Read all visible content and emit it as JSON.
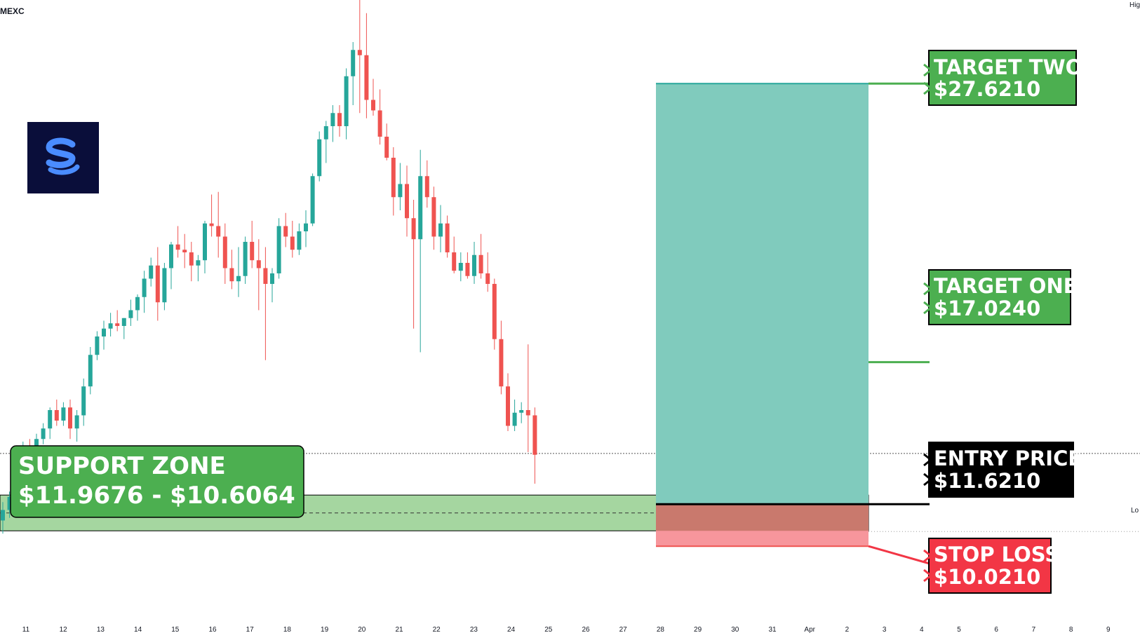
{
  "header": {
    "exchange": "MEXC"
  },
  "corner_labels": {
    "top_right": "Hig",
    "right_edge": "Lo"
  },
  "colors": {
    "up": "#26a69a",
    "down": "#ef5350",
    "target_zone": "#80cbbd",
    "stop_zone": "#f7969c",
    "support_zone": "#a5d6a0",
    "label_green": "#4caf50",
    "label_black": "#000000",
    "label_red": "#f23645",
    "logo_bg": "#0a0e3a",
    "logo_glyph": "#4a8cff"
  },
  "annotations": {
    "support_zone": {
      "title": "SUPPORT ZONE",
      "range": "$11.9676 - $10.6064",
      "top": 11.9676,
      "bottom": 10.6064
    },
    "target_two": {
      "title": "TARGET TWO",
      "price_text": "$27.6210",
      "price": 27.621
    },
    "target_one": {
      "title": "TARGET ONE",
      "price_text": "$17.0240",
      "price": 17.024
    },
    "entry": {
      "title": "ENTRY PRICE",
      "price_text": "$11.6210",
      "price": 11.621
    },
    "stop_loss": {
      "title": "STOP LOSS",
      "price_text": "$10.0210",
      "price": 10.021
    }
  },
  "chart_data": {
    "type": "candlestick",
    "title": "",
    "xlabel": "",
    "ylabel": "",
    "ylim": [
      7.6,
      30.8
    ],
    "grid": false,
    "last_price": 13.55,
    "x_ticks": [
      "11",
      "12",
      "13",
      "14",
      "15",
      "16",
      "17",
      "18",
      "19",
      "20",
      "21",
      "22",
      "23",
      "24",
      "25",
      "26",
      "27",
      "28",
      "29",
      "30",
      "31",
      "Apr",
      "2",
      "3",
      "4",
      "5",
      "6",
      "7",
      "8",
      "9"
    ],
    "candles": [
      [
        11.0,
        11.7,
        10.5,
        11.4
      ],
      [
        11.4,
        12.1,
        11.1,
        11.9
      ],
      [
        11.9,
        13.4,
        11.8,
        13.2
      ],
      [
        13.2,
        14.0,
        13.0,
        13.8
      ],
      [
        13.8,
        14.1,
        13.4,
        13.6
      ],
      [
        13.6,
        14.3,
        13.4,
        14.1
      ],
      [
        14.1,
        14.7,
        13.9,
        14.5
      ],
      [
        14.5,
        15.3,
        14.1,
        15.2
      ],
      [
        15.2,
        15.6,
        14.6,
        14.8
      ],
      [
        14.8,
        15.5,
        14.6,
        15.3
      ],
      [
        15.3,
        15.6,
        14.1,
        14.5
      ],
      [
        14.5,
        15.2,
        14.0,
        15.0
      ],
      [
        15.0,
        16.4,
        14.6,
        16.1
      ],
      [
        16.1,
        17.6,
        15.8,
        17.3
      ],
      [
        17.3,
        18.2,
        17.1,
        18.0
      ],
      [
        18.0,
        18.6,
        17.5,
        18.3
      ],
      [
        18.3,
        18.9,
        18.0,
        18.5
      ],
      [
        18.5,
        19.0,
        18.2,
        18.4
      ],
      [
        18.4,
        18.7,
        17.9,
        18.7
      ],
      [
        18.7,
        19.4,
        18.4,
        19.0
      ],
      [
        19.0,
        19.6,
        18.6,
        19.5
      ],
      [
        19.5,
        20.5,
        18.9,
        20.2
      ],
      [
        20.2,
        21.0,
        19.9,
        20.7
      ],
      [
        20.7,
        21.4,
        18.6,
        19.3
      ],
      [
        19.3,
        20.8,
        19.0,
        20.6
      ],
      [
        20.6,
        21.6,
        19.8,
        21.5
      ],
      [
        21.5,
        22.2,
        21.0,
        21.3
      ],
      [
        21.3,
        21.9,
        20.6,
        21.2
      ],
      [
        21.2,
        21.6,
        20.1,
        20.7
      ],
      [
        20.7,
        21.1,
        20.1,
        20.9
      ],
      [
        20.9,
        22.4,
        20.4,
        22.3
      ],
      [
        22.3,
        23.4,
        21.8,
        22.2
      ],
      [
        22.2,
        23.5,
        21.0,
        21.8
      ],
      [
        21.8,
        22.3,
        20.0,
        20.6
      ],
      [
        20.6,
        21.3,
        19.8,
        20.1
      ],
      [
        20.1,
        21.4,
        19.5,
        20.3
      ],
      [
        20.3,
        21.8,
        20.0,
        21.6
      ],
      [
        21.6,
        22.4,
        20.6,
        20.9
      ],
      [
        20.9,
        21.7,
        19.0,
        20.6
      ],
      [
        20.6,
        21.4,
        17.1,
        20.0
      ],
      [
        20.0,
        20.6,
        19.3,
        20.4
      ],
      [
        20.4,
        22.5,
        20.2,
        22.2
      ],
      [
        22.2,
        22.7,
        21.4,
        21.8
      ],
      [
        21.8,
        22.4,
        21.0,
        21.3
      ],
      [
        21.3,
        22.3,
        21.1,
        22.0
      ],
      [
        22.0,
        22.8,
        21.4,
        22.3
      ],
      [
        22.3,
        24.2,
        22.2,
        24.1
      ],
      [
        24.1,
        25.8,
        23.9,
        25.5
      ],
      [
        25.5,
        26.2,
        24.6,
        26.0
      ],
      [
        26.0,
        26.8,
        25.4,
        26.5
      ],
      [
        26.5,
        26.8,
        25.6,
        26.0
      ],
      [
        26.0,
        28.2,
        25.5,
        27.9
      ],
      [
        27.9,
        29.2,
        26.8,
        28.9
      ],
      [
        28.9,
        30.9,
        26.5,
        28.7
      ],
      [
        28.7,
        30.3,
        26.3,
        27.0
      ],
      [
        27.0,
        27.8,
        26.4,
        26.6
      ],
      [
        26.6,
        27.4,
        25.3,
        25.6
      ],
      [
        25.6,
        26.1,
        24.7,
        24.8
      ],
      [
        24.8,
        25.2,
        22.6,
        23.3
      ],
      [
        23.3,
        24.6,
        22.8,
        23.8
      ],
      [
        23.8,
        24.5,
        21.8,
        22.5
      ],
      [
        22.5,
        23.2,
        18.3,
        21.7
      ],
      [
        21.7,
        25.1,
        17.4,
        24.1
      ],
      [
        24.1,
        24.7,
        22.9,
        23.3
      ],
      [
        23.3,
        23.7,
        21.3,
        21.8
      ],
      [
        21.8,
        23.0,
        21.2,
        22.3
      ],
      [
        22.3,
        22.6,
        21.0,
        21.2
      ],
      [
        21.2,
        21.8,
        20.4,
        20.5
      ],
      [
        20.5,
        21.2,
        20.1,
        20.8
      ],
      [
        20.8,
        21.2,
        20.2,
        20.3
      ],
      [
        20.3,
        21.6,
        20.0,
        21.1
      ],
      [
        21.1,
        21.9,
        20.2,
        20.4
      ],
      [
        20.4,
        21.2,
        19.7,
        20.0
      ],
      [
        20.0,
        20.2,
        17.5,
        17.9
      ],
      [
        17.9,
        18.6,
        15.8,
        16.1
      ],
      [
        16.1,
        16.6,
        14.4,
        14.6
      ],
      [
        14.6,
        15.6,
        14.4,
        15.1
      ],
      [
        15.1,
        15.5,
        14.7,
        15.2
      ],
      [
        15.2,
        17.7,
        13.6,
        15.0
      ],
      [
        15.0,
        15.3,
        12.4,
        13.5
      ]
    ]
  }
}
